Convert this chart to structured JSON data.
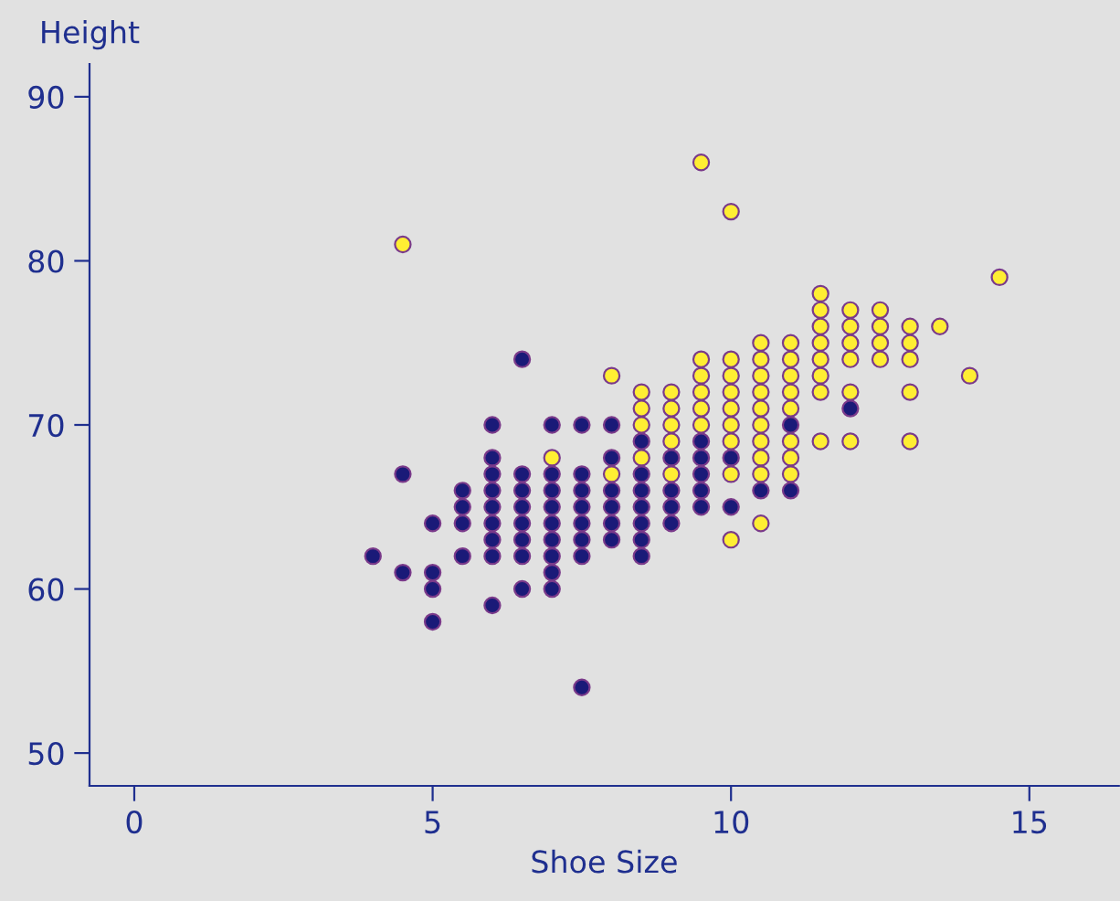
{
  "chart_data": {
    "type": "scatter",
    "xlabel": "Shoe Size",
    "ylabel": "Height",
    "xlim": [
      -0.75,
      16.5
    ],
    "ylim": [
      48,
      92
    ],
    "xticks": [
      0,
      5,
      10,
      15
    ],
    "yticks": [
      50,
      60,
      70,
      80,
      90
    ],
    "grid": false,
    "marker": "circle",
    "series": [
      {
        "color": "#1a1a78",
        "x": [
          4,
          4.5,
          4.5,
          5,
          5,
          5,
          5,
          5.5,
          5.5,
          5.5,
          5.5,
          6,
          6,
          6,
          6,
          6,
          6,
          6,
          6,
          6,
          6.5,
          6.5,
          6.5,
          6.5,
          6.5,
          6.5,
          6.5,
          6.5,
          7,
          7,
          7,
          7,
          7,
          7,
          7,
          7,
          7,
          7.5,
          7.5,
          7.5,
          7.5,
          7.5,
          7.5,
          7.5,
          7.5,
          8,
          8,
          8,
          8,
          8,
          8,
          8.5,
          8.5,
          8.5,
          8.5,
          8.5,
          8.5,
          8.5,
          9,
          9,
          9,
          9,
          9.5,
          9.5,
          9.5,
          9.5,
          9.5,
          10,
          10,
          10.5,
          11,
          11,
          12
        ],
        "values": [
          62,
          67,
          61,
          64,
          61,
          60,
          58,
          66,
          65,
          64,
          62,
          70,
          68,
          67,
          66,
          65,
          64,
          63,
          62,
          59,
          74,
          67,
          66,
          65,
          64,
          63,
          62,
          60,
          70,
          67,
          66,
          65,
          64,
          63,
          62,
          61,
          60,
          70,
          67,
          66,
          65,
          64,
          63,
          62,
          54,
          70,
          68,
          66,
          65,
          64,
          63,
          69,
          67,
          66,
          65,
          64,
          63,
          62,
          68,
          66,
          65,
          64,
          69,
          68,
          67,
          66,
          65,
          68,
          65,
          66,
          70,
          66,
          71
        ]
      },
      {
        "color": "#ffee33",
        "x": [
          4.5,
          7,
          8,
          8,
          8.5,
          8.5,
          8.5,
          8.5,
          9,
          9,
          9,
          9,
          9,
          9.5,
          9.5,
          9.5,
          9.5,
          9.5,
          9.5,
          10,
          10,
          10,
          10,
          10,
          10,
          10,
          10,
          10,
          10.5,
          10.5,
          10.5,
          10.5,
          10.5,
          10.5,
          10.5,
          10.5,
          10.5,
          10.5,
          11,
          11,
          11,
          11,
          11,
          11,
          11,
          11,
          11.5,
          11.5,
          11.5,
          11.5,
          11.5,
          11.5,
          11.5,
          11.5,
          12,
          12,
          12,
          12,
          12,
          12,
          12.5,
          12.5,
          12.5,
          12.5,
          13,
          13,
          13,
          13,
          13,
          13.5,
          14,
          14.5
        ],
        "values": [
          81,
          68,
          73,
          67,
          72,
          71,
          70,
          68,
          72,
          71,
          70,
          69,
          67,
          74,
          73,
          72,
          71,
          70,
          86,
          74,
          73,
          72,
          71,
          70,
          69,
          67,
          63,
          83,
          75,
          74,
          73,
          72,
          71,
          70,
          69,
          68,
          67,
          64,
          75,
          74,
          73,
          72,
          71,
          69,
          68,
          67,
          78,
          77,
          76,
          75,
          74,
          73,
          72,
          69,
          77,
          76,
          75,
          74,
          72,
          69,
          77,
          76,
          75,
          74,
          76,
          75,
          74,
          72,
          69,
          76,
          73,
          79
        ]
      }
    ]
  }
}
